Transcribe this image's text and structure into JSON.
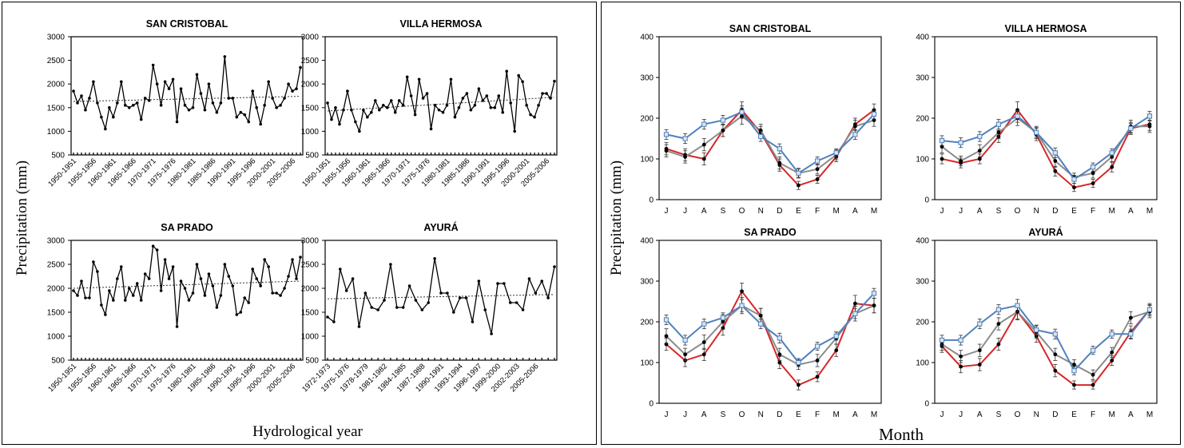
{
  "left_figure": {
    "ylabel": "Precipitation (mm)",
    "xlabel": "Hydrological year"
  },
  "right_figure": {
    "ylabel": "Precipitation (mm)",
    "xlabel": "Month"
  },
  "colors": {
    "series_red": "#d62728",
    "series_gray": "#8c8c8c",
    "series_blue": "#4f81bd",
    "trend": "#333333"
  },
  "chart_data": [
    {
      "type": "line",
      "title": "SAN CRISTOBAL",
      "ylim": [
        500,
        3000
      ],
      "yticks": [
        500,
        1000,
        1500,
        2000,
        2500,
        3000
      ],
      "xtick_labels": [
        "1950-1951",
        "1955-1956",
        "1960-1961",
        "1965-1966",
        "1970-1971",
        "1975-1976",
        "1980-1981",
        "1985-1986",
        "1990-1991",
        "1995-1996",
        "2000-2001",
        "2005-2006"
      ],
      "x_start_year": 1950,
      "trendline": [
        1630,
        1740
      ],
      "values": [
        1850,
        1600,
        1750,
        1450,
        1700,
        2050,
        1600,
        1300,
        1050,
        1500,
        1300,
        1600,
        2050,
        1550,
        1500,
        1550,
        1600,
        1250,
        1700,
        1650,
        2400,
        2000,
        1550,
        2050,
        1900,
        2100,
        1200,
        1900,
        1550,
        1450,
        1500,
        2200,
        1800,
        1450,
        2000,
        1600,
        1400,
        1600,
        2580,
        1700,
        1700,
        1300,
        1400,
        1350,
        1200,
        1850,
        1500,
        1150,
        1550,
        2050,
        1700,
        1500,
        1550,
        1700,
        2000,
        1850,
        1900,
        2350
      ]
    },
    {
      "type": "line",
      "title": "VILLA HERMOSA",
      "ylim": [
        500,
        3000
      ],
      "yticks": [
        500,
        1000,
        1500,
        2000,
        2500,
        3000
      ],
      "xtick_labels": [
        "1950-1951",
        "1955-1956",
        "1960-1961",
        "1965-1966",
        "1970-1971",
        "1975-1976",
        "1980-1981",
        "1985-1986",
        "1990-1991",
        "1995-1996",
        "2000-2001",
        "2005-2006"
      ],
      "x_start_year": 1950,
      "trendline": [
        1430,
        1720
      ],
      "values": [
        1600,
        1250,
        1500,
        1150,
        1450,
        1850,
        1450,
        1200,
        1000,
        1450,
        1300,
        1400,
        1650,
        1450,
        1550,
        1500,
        1650,
        1400,
        1650,
        1550,
        2150,
        1750,
        1350,
        2100,
        1700,
        1800,
        1050,
        1550,
        1450,
        1400,
        1550,
        2100,
        1300,
        1500,
        1700,
        1800,
        1450,
        1550,
        1900,
        1650,
        1750,
        1500,
        1500,
        1750,
        1400,
        2270,
        1600,
        1000,
        2180,
        2050,
        1550,
        1350,
        1300,
        1550,
        1800,
        1800,
        1700,
        2060
      ]
    },
    {
      "type": "line",
      "title": "SA PRADO",
      "ylim": [
        500,
        3000
      ],
      "yticks": [
        500,
        1000,
        1500,
        2000,
        2500,
        3000
      ],
      "xtick_labels": [
        "1950-1951",
        "1955-1956",
        "1960-1961",
        "1965-1966",
        "1970-1971",
        "1975-1976",
        "1980-1981",
        "1985-1986",
        "1990-1991",
        "1995-1996",
        "2000-2001",
        "2005-2006"
      ],
      "x_start_year": 1950,
      "trendline": [
        2000,
        2150
      ],
      "values": [
        1950,
        1850,
        2150,
        1800,
        1800,
        2550,
        2350,
        1650,
        1450,
        1950,
        1750,
        2200,
        2450,
        1750,
        2000,
        1850,
        2100,
        1750,
        2300,
        2200,
        2880,
        2800,
        1950,
        2600,
        2200,
        2450,
        1200,
        2150,
        2000,
        1750,
        1900,
        2500,
        2200,
        1850,
        2300,
        2050,
        1600,
        1850,
        2500,
        2250,
        2050,
        1450,
        1500,
        1800,
        1700,
        2400,
        2200,
        2050,
        2600,
        2450,
        1900,
        1900,
        1850,
        2000,
        2250,
        2600,
        2200,
        2650
      ]
    },
    {
      "type": "line",
      "title": "AYURÁ",
      "ylim": [
        500,
        3000
      ],
      "yticks": [
        500,
        1000,
        1500,
        2000,
        2500,
        3000
      ],
      "xtick_labels": [
        "1972-1973",
        "1975-1976",
        "1978-1979",
        "1981-1982",
        "1984-1985",
        "1987-1988",
        "1990-1991",
        "1993-1994",
        "1996-1997",
        "1999-2000",
        "2002-2003",
        "2005-2006"
      ],
      "x_start_year": 1972,
      "trendline": [
        1780,
        1870
      ],
      "values": [
        1400,
        1300,
        2400,
        1950,
        2200,
        1200,
        1900,
        1600,
        1550,
        1750,
        2500,
        1600,
        1600,
        2050,
        1750,
        1550,
        1700,
        2620,
        1900,
        1900,
        1500,
        1800,
        1800,
        1300,
        2150,
        1550,
        1050,
        2100,
        2100,
        1700,
        1700,
        1550,
        2200,
        1900,
        2150,
        1800,
        2450
      ]
    },
    {
      "type": "line",
      "title": "SAN CRISTOBAL",
      "ylim": [
        0,
        400
      ],
      "yticks": [
        0,
        100,
        200,
        300,
        400
      ],
      "categories": [
        "J",
        "J",
        "A",
        "S",
        "O",
        "N",
        "D",
        "E",
        "F",
        "M",
        "A",
        "M"
      ],
      "series": [
        {
          "color": "#d62728",
          "values": [
            125,
            110,
            100,
            170,
            220,
            165,
            85,
            35,
            50,
            105,
            185,
            220
          ],
          "errors": [
            15,
            15,
            15,
            15,
            20,
            15,
            15,
            10,
            10,
            12,
            15,
            15
          ]
        },
        {
          "color": "#8c8c8c",
          "values": [
            120,
            105,
            135,
            170,
            205,
            170,
            90,
            65,
            75,
            110,
            180,
            195
          ],
          "errors": [
            15,
            15,
            15,
            15,
            20,
            15,
            15,
            12,
            12,
            12,
            15,
            15
          ]
        },
        {
          "color": "#4f81bd",
          "values": [
            160,
            150,
            185,
            195,
            215,
            155,
            125,
            65,
            95,
            115,
            160,
            210
          ],
          "errors": [
            12,
            12,
            12,
            12,
            15,
            12,
            12,
            10,
            10,
            10,
            12,
            12
          ]
        }
      ]
    },
    {
      "type": "line",
      "title": "VILLA HERMOSA",
      "ylim": [
        0,
        400
      ],
      "yticks": [
        0,
        100,
        200,
        300,
        400
      ],
      "categories": [
        "J",
        "J",
        "A",
        "S",
        "O",
        "N",
        "D",
        "E",
        "F",
        "M",
        "A",
        "M"
      ],
      "series": [
        {
          "color": "#d62728",
          "values": [
            100,
            90,
            100,
            155,
            220,
            160,
            70,
            30,
            40,
            80,
            175,
            185
          ],
          "errors": [
            12,
            12,
            12,
            15,
            20,
            15,
            12,
            10,
            10,
            12,
            15,
            15
          ]
        },
        {
          "color": "#8c8c8c",
          "values": [
            130,
            95,
            120,
            165,
            200,
            165,
            95,
            55,
            65,
            105,
            180,
            180
          ],
          "errors": [
            15,
            12,
            15,
            15,
            18,
            15,
            15,
            10,
            12,
            12,
            15,
            15
          ]
        },
        {
          "color": "#4f81bd",
          "values": [
            145,
            140,
            155,
            185,
            205,
            165,
            115,
            50,
            80,
            115,
            175,
            205
          ],
          "errors": [
            12,
            12,
            12,
            12,
            15,
            12,
            12,
            10,
            10,
            10,
            12,
            12
          ]
        }
      ]
    },
    {
      "type": "line",
      "title": "SA PRADO",
      "ylim": [
        0,
        400
      ],
      "yticks": [
        0,
        100,
        200,
        300,
        400
      ],
      "categories": [
        "J",
        "J",
        "A",
        "S",
        "O",
        "N",
        "D",
        "E",
        "F",
        "M",
        "A",
        "M"
      ],
      "series": [
        {
          "color": "#d62728",
          "values": [
            145,
            105,
            120,
            185,
            275,
            215,
            100,
            45,
            65,
            130,
            245,
            240
          ],
          "errors": [
            15,
            15,
            15,
            18,
            20,
            18,
            15,
            12,
            12,
            15,
            20,
            18
          ]
        },
        {
          "color": "#8c8c8c",
          "values": [
            165,
            120,
            150,
            200,
            240,
            215,
            120,
            95,
            105,
            160,
            220,
            240
          ],
          "errors": [
            18,
            15,
            18,
            18,
            20,
            18,
            15,
            12,
            15,
            15,
            18,
            18
          ]
        },
        {
          "color": "#4f81bd",
          "values": [
            205,
            155,
            195,
            210,
            240,
            195,
            160,
            100,
            140,
            165,
            220,
            270
          ],
          "errors": [
            12,
            12,
            12,
            12,
            15,
            12,
            12,
            10,
            10,
            10,
            12,
            12
          ]
        }
      ]
    },
    {
      "type": "line",
      "title": "AYURÁ",
      "ylim": [
        0,
        400
      ],
      "yticks": [
        0,
        100,
        200,
        300,
        400
      ],
      "categories": [
        "J",
        "J",
        "A",
        "S",
        "O",
        "N",
        "D",
        "E",
        "F",
        "M",
        "A",
        "M"
      ],
      "series": [
        {
          "color": "#d62728",
          "values": [
            140,
            90,
            95,
            145,
            225,
            165,
            80,
            45,
            45,
            105,
            175,
            230
          ],
          "errors": [
            15,
            15,
            15,
            15,
            20,
            15,
            15,
            10,
            10,
            12,
            15,
            15
          ]
        },
        {
          "color": "#8c8c8c",
          "values": [
            145,
            115,
            130,
            195,
            225,
            175,
            120,
            95,
            70,
            125,
            210,
            225
          ],
          "errors": [
            15,
            15,
            15,
            15,
            18,
            15,
            15,
            12,
            12,
            12,
            15,
            15
          ]
        },
        {
          "color": "#4f81bd",
          "values": [
            155,
            155,
            195,
            230,
            240,
            180,
            170,
            80,
            130,
            170,
            170,
            230
          ],
          "errors": [
            12,
            12,
            12,
            12,
            15,
            12,
            12,
            10,
            10,
            10,
            12,
            12
          ]
        }
      ]
    }
  ]
}
